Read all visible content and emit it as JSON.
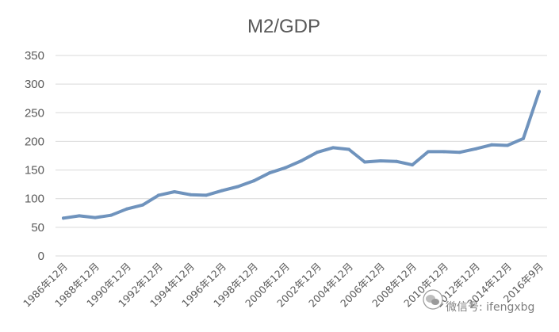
{
  "chart_data": {
    "type": "line",
    "title": "M2/GDP",
    "xlabel": "",
    "ylabel": "",
    "ylim": [
      0,
      350
    ],
    "yticks": [
      "0",
      "50",
      "100",
      "150",
      "200",
      "250",
      "300",
      "350"
    ],
    "grid": true,
    "x": [
      "1986年12月",
      "1987年12月",
      "1988年12月",
      "1989年12月",
      "1990年12月",
      "1991年12月",
      "1992年12月",
      "1993年12月",
      "1994年12月",
      "1995年12月",
      "1996年12月",
      "1997年12月",
      "1998年12月",
      "1999年12月",
      "2000年12月",
      "2001年12月",
      "2002年12月",
      "2003年12月",
      "2004年12月",
      "2005年12月",
      "2006年12月",
      "2007年12月",
      "2008年12月",
      "2009年12月",
      "2010年12月",
      "2011年12月",
      "2012年12月",
      "2013年12月",
      "2014年12月",
      "2015年12月",
      "2016年9月"
    ],
    "xticks_shown": [
      "1986年12月",
      "1988年12月",
      "1990年12月",
      "1992年12月",
      "1994年12月",
      "1996年12月",
      "1998年12月",
      "2000年12月",
      "2002年12月",
      "2004年12月",
      "2006年12月",
      "2008年12月",
      "2010年12月",
      "2012年12月",
      "2014年12月",
      "2016年9月"
    ],
    "series": [
      {
        "values": [
          66,
          70,
          67,
          71,
          82,
          89,
          106,
          112,
          107,
          106,
          114,
          121,
          131,
          145,
          154,
          166,
          181,
          189,
          186,
          164,
          166,
          165,
          159,
          182,
          182,
          181,
          187,
          194,
          193,
          205,
          287
        ],
        "color": "#6f93bd"
      }
    ]
  },
  "watermark": {
    "text": "微信号: ifengxbg",
    "icon": "wechat-icon"
  }
}
